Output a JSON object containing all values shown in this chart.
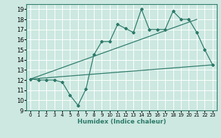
{
  "xlabel": "Humidex (Indice chaleur)",
  "bg_color": "#cce8e0",
  "line_color": "#2d7a6a",
  "xlim": [
    -0.5,
    23.5
  ],
  "ylim": [
    9,
    19.5
  ],
  "xticks": [
    0,
    1,
    2,
    3,
    4,
    5,
    6,
    7,
    8,
    9,
    10,
    11,
    12,
    13,
    14,
    15,
    16,
    17,
    18,
    19,
    20,
    21,
    22,
    23
  ],
  "yticks": [
    9,
    10,
    11,
    12,
    13,
    14,
    15,
    16,
    17,
    18,
    19
  ],
  "zigzag_x": [
    0,
    1,
    2,
    3,
    4,
    5,
    6,
    7,
    8,
    9,
    10,
    11,
    12,
    13,
    14,
    15,
    16,
    17,
    18,
    19,
    20,
    21,
    22,
    23
  ],
  "zigzag_y": [
    12.1,
    12.0,
    12.0,
    12.0,
    11.8,
    10.5,
    9.5,
    11.1,
    14.5,
    15.8,
    15.8,
    17.5,
    17.1,
    16.7,
    19.0,
    17.0,
    17.0,
    17.0,
    18.8,
    18.0,
    18.0,
    16.7,
    15.0,
    13.5
  ],
  "trend1_x": [
    0,
    23
  ],
  "trend1_y": [
    12.1,
    13.5
  ],
  "trend2_x": [
    0,
    21
  ],
  "trend2_y": [
    12.1,
    18.0
  ]
}
